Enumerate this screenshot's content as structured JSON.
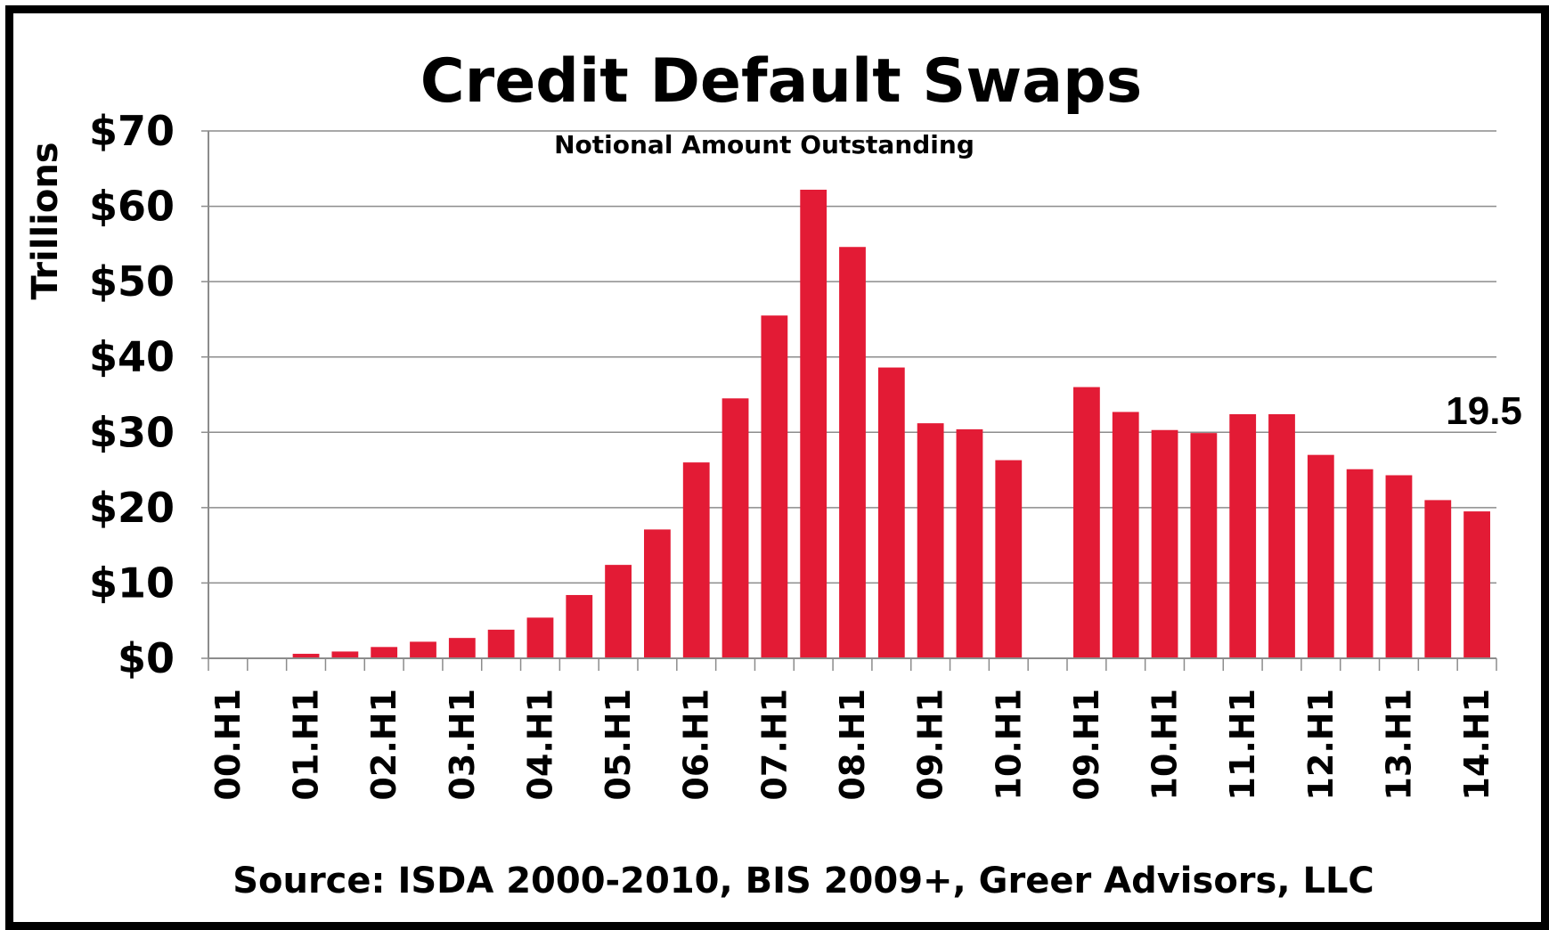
{
  "chart_data": {
    "type": "bar",
    "title": "Credit Default Swaps",
    "subtitle": "Notional Amount Outstanding",
    "ylabel": "Trillions",
    "xlabel": "",
    "source": "Source: ISDA 2000-2010, BIS 2009+, Greer Advisors, LLC",
    "ylim": [
      0,
      70
    ],
    "yticks": [
      0,
      10,
      20,
      30,
      40,
      50,
      60,
      70
    ],
    "ytick_labels": [
      "$0",
      "$10",
      "$20",
      "$30",
      "$40",
      "$50",
      "$60",
      "$70"
    ],
    "grid": true,
    "bar_color": "#e31b35",
    "categories": [
      "00.H1",
      "00.H2",
      "01.H1",
      "01.H2",
      "02.H1",
      "02.H2",
      "03.H1",
      "03.H2",
      "04.H1",
      "04.H2",
      "05.H1",
      "05.H2",
      "06.H1",
      "06.H2",
      "07.H1",
      "07.H2",
      "08.H1",
      "08.H2",
      "09.H1",
      "09.H2",
      "10.H1",
      "10.H2",
      "09.H1",
      "09.H2",
      "10.H1",
      "10.H2",
      "11.H1",
      "11.H2",
      "12.H1",
      "12.H2",
      "13.H1",
      "13.H2",
      "14.H1"
    ],
    "visible_tick_labels": [
      "00.H1",
      "01.H1",
      "02.H1",
      "03.H1",
      "04.H1",
      "05.H1",
      "06.H1",
      "07.H1",
      "08.H1",
      "09.H1",
      "10.H1",
      "09.H1",
      "10.H1",
      "11.H1",
      "12.H1",
      "13.H1",
      "14.H1"
    ],
    "values": [
      0,
      0,
      0.6,
      0.9,
      1.5,
      2.2,
      2.7,
      3.8,
      5.4,
      8.4,
      12.4,
      17.1,
      26.0,
      34.5,
      45.5,
      62.2,
      54.6,
      38.6,
      31.2,
      30.4,
      26.3,
      null,
      36.0,
      32.7,
      30.3,
      29.9,
      32.4,
      32.4,
      27.0,
      25.1,
      24.3,
      21.0,
      19.5
    ],
    "data_labels": [
      {
        "category_index": 32,
        "text": "19.5"
      }
    ]
  }
}
